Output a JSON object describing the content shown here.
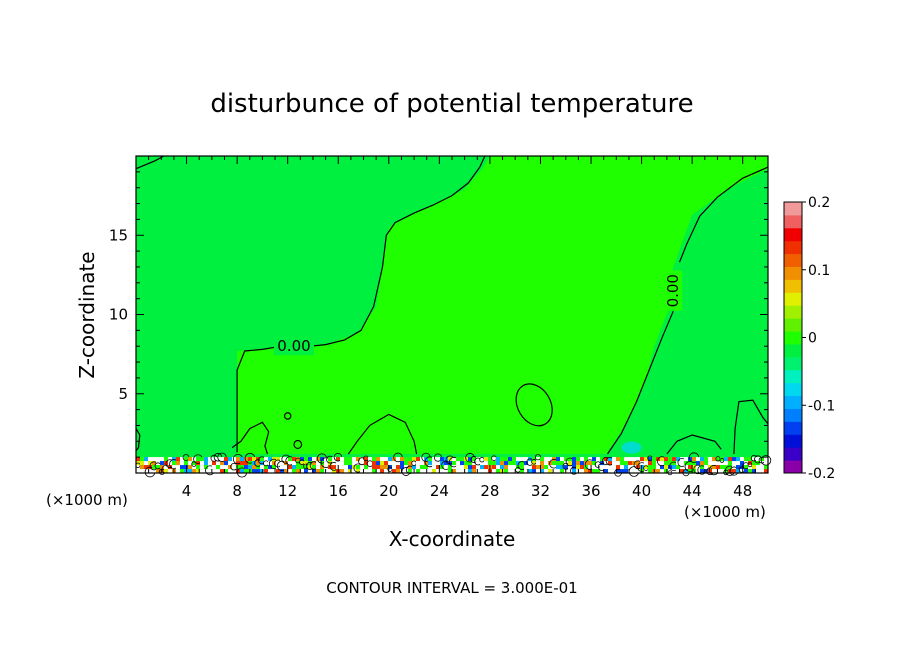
{
  "chart_data": {
    "type": "heatmap",
    "title": "disturbunce of potential temperature",
    "xlabel": "X-coordinate",
    "ylabel": "Z-coordinate",
    "x_unit_left": "(×1000 m)",
    "x_unit_right": "(×1000 m)",
    "footer": "CONTOUR INTERVAL = 3.000E-01",
    "xlim": [
      0,
      50
    ],
    "ylim": [
      0,
      20
    ],
    "x_ticks": [
      4,
      8,
      12,
      16,
      20,
      24,
      28,
      32,
      36,
      40,
      44,
      48
    ],
    "y_ticks": [
      5,
      10,
      15
    ],
    "background_value": 0.0,
    "contour_labels": [
      {
        "text": "0.00",
        "x": 12.5,
        "y": 8.0,
        "rotation": 0
      },
      {
        "text": "0.00",
        "x": 42.5,
        "y": 11.5,
        "rotation": -90
      }
    ],
    "colorbar": {
      "min": -0.2,
      "max": 0.2,
      "tick_labels": [
        "0.2",
        "0.1",
        "0",
        "-0.1",
        "-0.2"
      ],
      "tick_values": [
        0.2,
        0.1,
        0.0,
        -0.1,
        -0.2
      ],
      "colors": [
        "#8a00a8",
        "#3a00c8",
        "#0010d8",
        "#0040f0",
        "#0080ff",
        "#00b0ff",
        "#00d8f0",
        "#00f0c0",
        "#00f070",
        "#00f040",
        "#20ff00",
        "#60f000",
        "#a0f000",
        "#e0f000",
        "#f0c000",
        "#f09000",
        "#f06000",
        "#f03000",
        "#f00000",
        "#f06060",
        "#f09a9a"
      ]
    },
    "colors": {
      "field": "#00f040",
      "field_alt": "#20ff00",
      "contour": "#000000"
    }
  }
}
